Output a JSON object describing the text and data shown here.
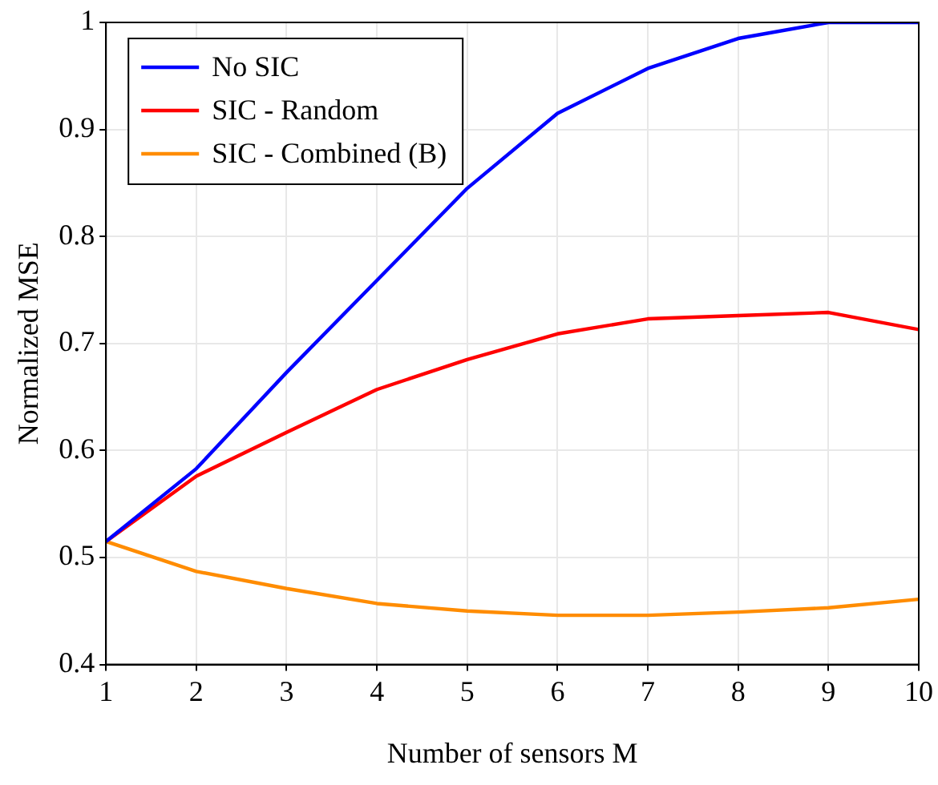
{
  "chart_data": {
    "type": "line",
    "xlabel": "Number of sensors M",
    "ylabel": "Normalized MSE",
    "x": [
      1,
      2,
      3,
      4,
      5,
      6,
      7,
      8,
      9,
      10
    ],
    "xlim": [
      1,
      10
    ],
    "xticks": [
      1,
      2,
      3,
      4,
      5,
      6,
      7,
      8,
      9,
      10
    ],
    "ylim": [
      0.4,
      1
    ],
    "yticks": [
      0.4,
      0.5,
      0.6,
      0.7,
      0.8,
      0.9,
      1
    ],
    "grid": true,
    "legend": "top left",
    "marker": "none",
    "line_style": "solid",
    "series": [
      {
        "name": "No SIC",
        "color": "#0000ff",
        "values": [
          0.515,
          0.583,
          0.673,
          0.759,
          0.845,
          0.915,
          0.957,
          0.985,
          1.0,
          1.0
        ]
      },
      {
        "name": "SIC - Random",
        "color": "#ff0000",
        "values": [
          0.515,
          0.576,
          0.617,
          0.657,
          0.685,
          0.709,
          0.723,
          0.726,
          0.729,
          0.713
        ]
      },
      {
        "name": "SIC - Combined (B)",
        "color": "#ff8c00",
        "values": [
          0.515,
          0.487,
          0.471,
          0.457,
          0.45,
          0.446,
          0.446,
          0.449,
          0.453,
          0.461
        ]
      }
    ]
  }
}
